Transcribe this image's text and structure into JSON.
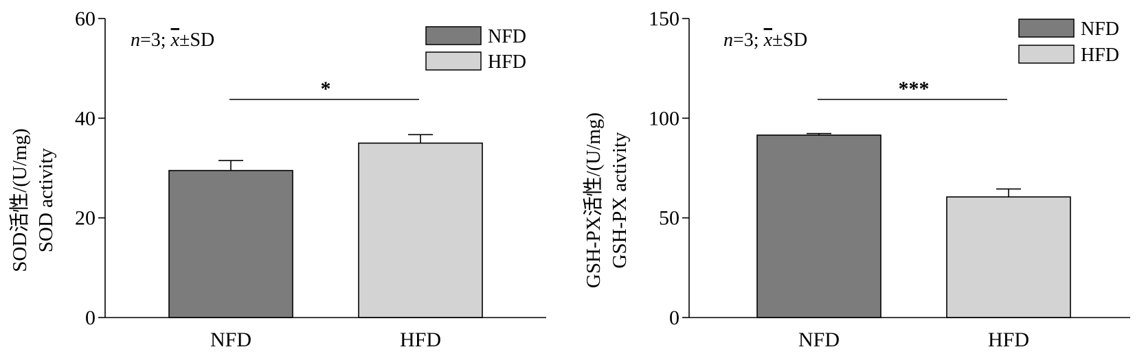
{
  "note": {
    "n": "n",
    "eq": "=3; ",
    "x": "x",
    "pm": "±SD"
  },
  "legend": [
    "NFD",
    "HFD"
  ],
  "colors": {
    "NFD": "#7c7c7c",
    "HFD": "#d3d3d3",
    "stroke": "#000000"
  },
  "chart_data": [
    {
      "type": "bar",
      "categories": [
        "NFD",
        "HFD"
      ],
      "values": [
        29.5,
        35.0
      ],
      "errors": [
        2.0,
        1.7
      ],
      "ylim": [
        0,
        60
      ],
      "yticks": [
        0,
        20,
        40,
        60
      ],
      "ylabel_cn": "SOD活性/(U/mg)",
      "ylabel_en": "SOD activity",
      "significance": "*"
    },
    {
      "type": "bar",
      "categories": [
        "NFD",
        "HFD"
      ],
      "values": [
        91.5,
        60.5
      ],
      "errors": [
        0.8,
        4.0
      ],
      "ylim": [
        0,
        150
      ],
      "yticks": [
        0,
        50,
        100,
        150
      ],
      "ylabel_cn": "GSH-PX活性/(U/mg)",
      "ylabel_en": "GSH-PX activity",
      "significance": "***"
    }
  ]
}
